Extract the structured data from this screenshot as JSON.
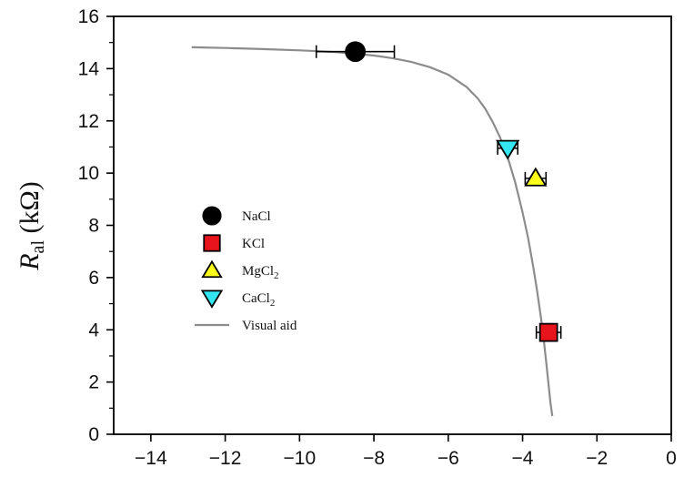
{
  "chart_data": {
    "type": "scatter",
    "title": "",
    "xlabel": "",
    "ylabel": {
      "main": "R",
      "sub": "al",
      "unit": "(kΩ)"
    },
    "xlim": [
      -15,
      0
    ],
    "ylim": [
      0,
      16
    ],
    "x_ticks": [
      -14,
      -12,
      -10,
      -8,
      -6,
      -4,
      -2,
      0
    ],
    "x_tick_labels": [
      "−14",
      "−12",
      "−10",
      "−8",
      "−6",
      "−4",
      "−2",
      "0"
    ],
    "y_ticks": [
      0,
      2,
      4,
      6,
      8,
      10,
      12,
      14,
      16
    ],
    "y_tick_labels": [
      "0",
      "2",
      "4",
      "6",
      "8",
      "10",
      "12",
      "14",
      "16"
    ],
    "grid": false,
    "legend_position": "center-left",
    "series": [
      {
        "name": "NaCl",
        "name_sub": "",
        "marker": "circle",
        "color": "#000000",
        "points": [
          {
            "x": -8.5,
            "y": 14.65,
            "xerr": 1.05
          }
        ]
      },
      {
        "name": "KCl",
        "name_sub": "",
        "marker": "square",
        "color": "#e8141b",
        "points": [
          {
            "x": -3.3,
            "y": 3.9,
            "xerr": 0.33
          }
        ]
      },
      {
        "name": "MgCl",
        "name_sub": "2",
        "marker": "triangle-up",
        "color": "#ffff1a",
        "points": [
          {
            "x": -3.65,
            "y": 9.8,
            "xerr": 0.28
          }
        ]
      },
      {
        "name": "CaCl",
        "name_sub": "2",
        "marker": "triangle-down",
        "color": "#33e6f2",
        "points": [
          {
            "x": -4.4,
            "y": 10.95,
            "xerr": 0.27
          }
        ]
      }
    ],
    "visual_aid": {
      "name": "Visual aid",
      "color": "#8c8c8c",
      "x": [
        -12.9,
        -12,
        -11,
        -10,
        -9.5,
        -9,
        -8.5,
        -8,
        -7.5,
        -7,
        -6.5,
        -6,
        -5.5,
        -5.2,
        -5,
        -4.8,
        -4.6,
        -4.4,
        -4.2,
        -4.0,
        -3.85,
        -3.7,
        -3.6,
        -3.5,
        -3.42,
        -3.36,
        -3.3,
        -3.25,
        -3.2
      ],
      "y": [
        14.82,
        14.79,
        14.75,
        14.7,
        14.67,
        14.63,
        14.57,
        14.5,
        14.4,
        14.26,
        14.06,
        13.77,
        13.29,
        12.85,
        12.45,
        11.95,
        11.35,
        10.6,
        9.65,
        8.5,
        7.5,
        6.3,
        5.4,
        4.4,
        3.5,
        2.7,
        1.9,
        1.2,
        0.7
      ]
    }
  }
}
